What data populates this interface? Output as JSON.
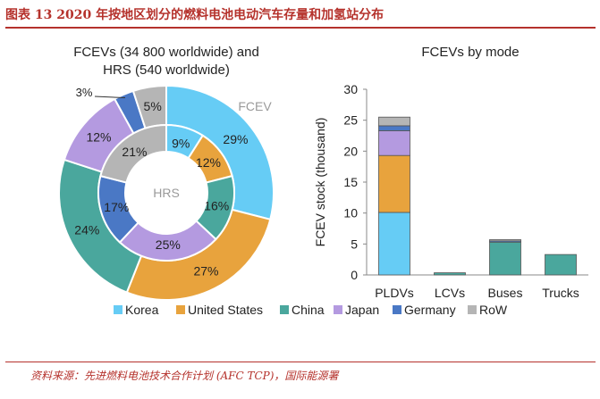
{
  "title": "图表 13  2020 年按地区划分的燃料电池电动汽车存量和加氢站分布",
  "source": "资料来源：先进燃料电池技术合作计划 (AFC TCP)，国际能源署",
  "colors": {
    "Korea": "#66ccf5",
    "United States": "#e8a33d",
    "China": "#4aa79d",
    "Japan": "#b49ae0",
    "Germany": "#4a78c5",
    "RoW": "#b5b5b5"
  },
  "legend": [
    "Korea",
    "United States",
    "China",
    "Japan",
    "Germany",
    "RoW"
  ],
  "chart_data": [
    {
      "type": "pie",
      "title_lines": [
        "FCEVs (34 800 worldwide) and",
        "HRS (540 worldwide)"
      ],
      "outer_label": "FCEV",
      "center_label": "HRS",
      "outer_ring": {
        "name": "FCEV",
        "categories": [
          "Korea",
          "United States",
          "China",
          "Japan",
          "Germany",
          "RoW"
        ],
        "labels": [
          "29%",
          "27%",
          "24%",
          "12%",
          "3%",
          "5%"
        ],
        "values": [
          29,
          27,
          24,
          12,
          3,
          5
        ]
      },
      "inner_ring": {
        "name": "HRS",
        "categories": [
          "Korea",
          "United States",
          "China",
          "Japan",
          "Germany",
          "RoW"
        ],
        "labels": [
          "9%",
          "12%",
          "16%",
          "25%",
          "17%",
          "21%"
        ],
        "values": [
          9,
          12,
          16,
          25,
          17,
          21
        ]
      }
    },
    {
      "type": "bar",
      "stacked": true,
      "title": "FCEVs by mode",
      "ylabel": "FCEV stock (thousand)",
      "ylim": [
        0,
        30
      ],
      "yticks": [
        0,
        5,
        10,
        15,
        20,
        25,
        30
      ],
      "categories": [
        "PLDVs",
        "LCVs",
        "Buses",
        "Trucks"
      ],
      "series": [
        {
          "name": "Korea",
          "values": [
            10.1,
            0,
            0,
            0
          ]
        },
        {
          "name": "United States",
          "values": [
            9.2,
            0,
            0,
            0
          ]
        },
        {
          "name": "China",
          "values": [
            0,
            0.35,
            5.4,
            3.3
          ]
        },
        {
          "name": "Japan",
          "values": [
            4.0,
            0,
            0,
            0
          ]
        },
        {
          "name": "Germany",
          "values": [
            0.8,
            0,
            0.1,
            0
          ]
        },
        {
          "name": "RoW",
          "values": [
            1.4,
            0,
            0.2,
            0
          ]
        }
      ]
    }
  ]
}
